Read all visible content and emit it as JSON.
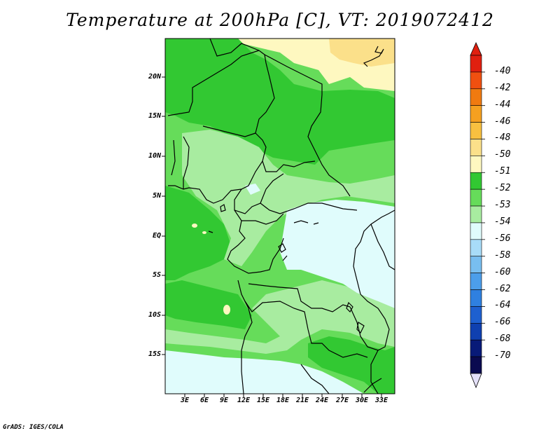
{
  "title": "Temperature at 200hPa [C], VT: 2019072412",
  "credit": "GrADS: IGES/COLA",
  "latitude_labels": [
    "20N",
    "15N",
    "10N",
    "5N",
    "EQ",
    "5S",
    "10S",
    "15S"
  ],
  "longitude_labels": [
    "3E",
    "6E",
    "9E",
    "12E",
    "15E",
    "18E",
    "21E",
    "24E",
    "27E",
    "30E",
    "33E"
  ],
  "colorbar": {
    "labels": [
      "-40",
      "-42",
      "-44",
      "-46",
      "-48",
      "-50",
      "-51",
      "-52",
      "-53",
      "-54",
      "-56",
      "-58",
      "-60",
      "-62",
      "-64",
      "-66",
      "-68",
      "-70"
    ],
    "colors": [
      "#e02010",
      "#f05010",
      "#f07a10",
      "#f5a020",
      "#f8c040",
      "#fbe08a",
      "#fef8c0",
      "#32c832",
      "#66dc5a",
      "#a8eca0",
      "#e0fcfc",
      "#a8dcf8",
      "#78bef0",
      "#4c9eea",
      "#2f80e0",
      "#1e60d0",
      "#0f40b0",
      "#081a78",
      "#0a0a50"
    ],
    "top_arrow_color": "#e02010",
    "bottom_arrow_color": "#e4e0f8"
  }
}
